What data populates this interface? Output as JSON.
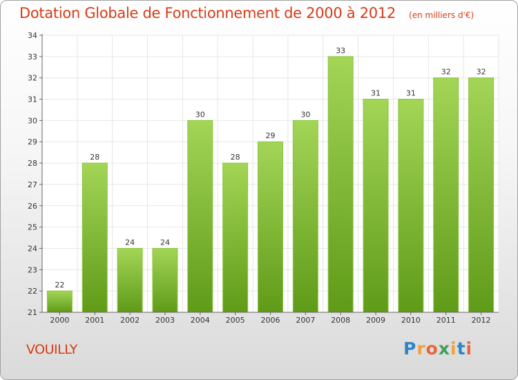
{
  "title": "Dotation Globale de Fonctionnement de 2000 à 2012",
  "unit": "(en milliers d'€)",
  "commune": "VOUILLY",
  "logo": {
    "letters": [
      "P",
      "r",
      "o",
      "x",
      "i",
      "t",
      "i"
    ],
    "colors": [
      "#2f86c6",
      "#f0a23b",
      "#e8663c",
      "#3ea05a",
      "#f0a23b",
      "#2f86c6",
      "#e8663c"
    ]
  },
  "colors": {
    "title": "#d83a16",
    "bar_light": "#a3d556",
    "bar_dark": "#5f9b18",
    "grid": "#e6e6e6",
    "axis": "#666666"
  },
  "chart_data": {
    "type": "bar",
    "categories": [
      "2000",
      "2001",
      "2002",
      "2003",
      "2004",
      "2005",
      "2006",
      "2007",
      "2008",
      "2009",
      "2010",
      "2011",
      "2012"
    ],
    "values": [
      22,
      28,
      24,
      24,
      30,
      28,
      29,
      30,
      33,
      31,
      31,
      32,
      32
    ],
    "data_labels": [
      "22",
      "28",
      "24",
      "24",
      "30",
      "28",
      "29",
      "30",
      "33",
      "31",
      "31",
      "32",
      "32"
    ],
    "title": "Dotation Globale de Fonctionnement de 2000 à 2012",
    "ylabel": "",
    "xlabel": "",
    "ylim": [
      21,
      34
    ],
    "yticks": [
      "21",
      "22",
      "23",
      "24",
      "25",
      "26",
      "27",
      "28",
      "29",
      "30",
      "31",
      "32",
      "33",
      "34"
    ],
    "grid": true,
    "legend": "none"
  }
}
